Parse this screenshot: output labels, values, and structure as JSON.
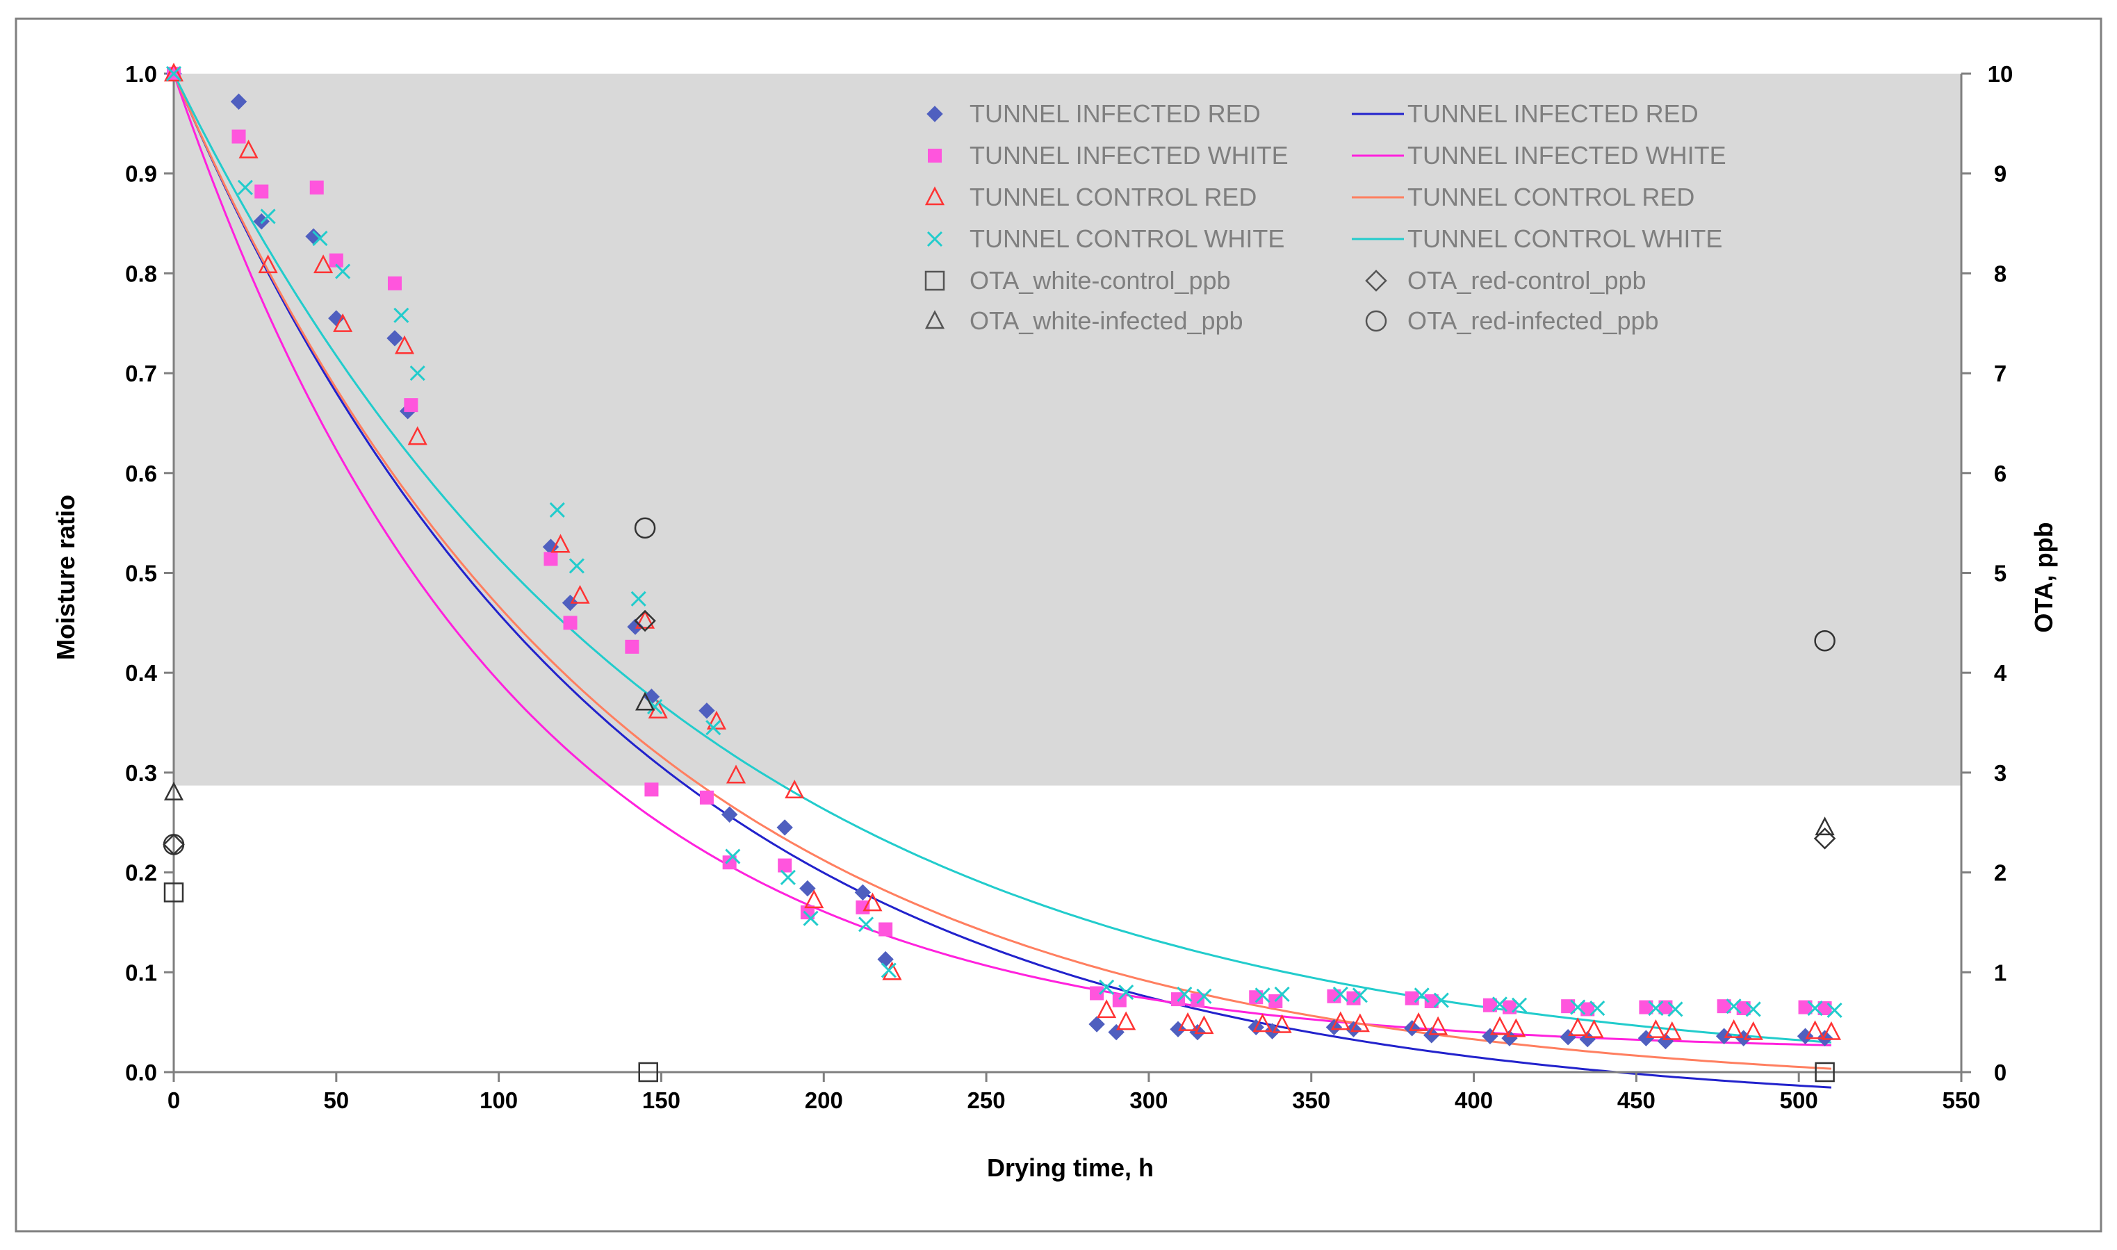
{
  "chart_data": {
    "type": "scatter",
    "title": "",
    "xlabel": "Drying time, h",
    "ylabel": "Moisture ratio",
    "y2label": "OTA, ppb",
    "xlim": [
      0,
      550
    ],
    "ylim": [
      0,
      1.0
    ],
    "y2lim": [
      0,
      10
    ],
    "x_ticks": [
      "0",
      "50",
      "100",
      "150",
      "200",
      "250",
      "300",
      "350",
      "400",
      "450",
      "500",
      "550"
    ],
    "y_ticks": [
      "0.0",
      "0.1",
      "0.2",
      "0.3",
      "0.4",
      "0.5",
      "0.6",
      "0.7",
      "0.8",
      "0.9",
      "1.0"
    ],
    "y2_ticks": [
      "0",
      "1",
      "2",
      "3",
      "4",
      "5",
      "6",
      "7",
      "8",
      "9",
      "10"
    ],
    "shaded_band": {
      "y_from": 0.287,
      "y_to": 1.0,
      "color": "#d9d9d9"
    },
    "grid": false,
    "legend_position": "top-right",
    "series": [
      {
        "name": "TUNNEL INFECTED RED",
        "marker": "diamond-filled",
        "color": "#4f5fbf",
        "axis": "left",
        "x": [
          0,
          20,
          27,
          43,
          50,
          68,
          72,
          116,
          122,
          142,
          147,
          164,
          171,
          188,
          195,
          212,
          219,
          284,
          290,
          309,
          315,
          333,
          338,
          357,
          363,
          381,
          387,
          405,
          411,
          429,
          435,
          453,
          459,
          477,
          483,
          502,
          508
        ],
        "y": [
          1.0,
          0.972,
          0.852,
          0.837,
          0.755,
          0.735,
          0.662,
          0.526,
          0.47,
          0.446,
          0.376,
          0.362,
          0.258,
          0.245,
          0.184,
          0.18,
          0.113,
          0.048,
          0.04,
          0.043,
          0.04,
          0.045,
          0.041,
          0.045,
          0.043,
          0.044,
          0.037,
          0.036,
          0.034,
          0.035,
          0.033,
          0.034,
          0.031,
          0.036,
          0.034,
          0.036,
          0.034
        ]
      },
      {
        "name": "TUNNEL INFECTED WHITE",
        "marker": "square-filled",
        "color": "#ff55dd",
        "axis": "left",
        "x": [
          0,
          20,
          27,
          44,
          50,
          68,
          73,
          116,
          122,
          141,
          147,
          164,
          171,
          188,
          195,
          212,
          219,
          284,
          291,
          309,
          315,
          333,
          339,
          357,
          363,
          381,
          387,
          405,
          411,
          429,
          435,
          453,
          459,
          477,
          483,
          502,
          508
        ],
        "y": [
          1.0,
          0.937,
          0.882,
          0.886,
          0.813,
          0.79,
          0.668,
          0.514,
          0.45,
          0.426,
          0.283,
          0.275,
          0.21,
          0.207,
          0.16,
          0.165,
          0.143,
          0.079,
          0.072,
          0.073,
          0.072,
          0.075,
          0.071,
          0.076,
          0.074,
          0.074,
          0.071,
          0.067,
          0.065,
          0.066,
          0.063,
          0.065,
          0.065,
          0.066,
          0.064,
          0.065,
          0.064
        ]
      },
      {
        "name": "TUNNEL CONTROL RED",
        "marker": "triangle-open",
        "color": "#ff3333",
        "axis": "left",
        "x": [
          0,
          23,
          29,
          46,
          52,
          71,
          75,
          119,
          125,
          145,
          149,
          167,
          173,
          191,
          197,
          215,
          221,
          287,
          293,
          312,
          317,
          335,
          341,
          359,
          365,
          383,
          389,
          408,
          413,
          432,
          437,
          456,
          461,
          480,
          486,
          505,
          510
        ],
        "y": [
          1.0,
          0.923,
          0.808,
          0.808,
          0.749,
          0.727,
          0.636,
          0.528,
          0.477,
          0.452,
          0.362,
          0.351,
          0.297,
          0.282,
          0.172,
          0.169,
          0.1,
          0.062,
          0.05,
          0.049,
          0.046,
          0.048,
          0.047,
          0.05,
          0.048,
          0.049,
          0.045,
          0.045,
          0.043,
          0.044,
          0.042,
          0.042,
          0.04,
          0.042,
          0.04,
          0.041,
          0.04
        ]
      },
      {
        "name": "TUNNEL CONTROL WHITE",
        "marker": "x",
        "color": "#22cccc",
        "axis": "left",
        "x": [
          0,
          22,
          29,
          45,
          52,
          70,
          75,
          118,
          124,
          143,
          148,
          166,
          172,
          189,
          196,
          213,
          220,
          287,
          293,
          311,
          317,
          335,
          341,
          359,
          365,
          384,
          390,
          408,
          414,
          432,
          438,
          456,
          462,
          480,
          486,
          505,
          511
        ],
        "y": [
          1.0,
          0.886,
          0.857,
          0.835,
          0.802,
          0.758,
          0.7,
          0.563,
          0.507,
          0.474,
          0.366,
          0.345,
          0.216,
          0.195,
          0.154,
          0.148,
          0.102,
          0.085,
          0.08,
          0.078,
          0.076,
          0.077,
          0.078,
          0.078,
          0.077,
          0.077,
          0.072,
          0.068,
          0.067,
          0.065,
          0.064,
          0.064,
          0.063,
          0.066,
          0.063,
          0.064,
          0.062
        ]
      },
      {
        "name": "OTA_white-control_ppb",
        "marker": "square-open",
        "color": "#333333",
        "axis": "right",
        "x": [
          0,
          146,
          508
        ],
        "y": [
          1.8,
          0.0,
          0.0
        ]
      },
      {
        "name": "OTA_white-infected_ppb",
        "marker": "triangle-open",
        "color": "#333333",
        "axis": "right",
        "x": [
          0,
          145,
          508
        ],
        "y": [
          2.8,
          3.7,
          2.45
        ]
      },
      {
        "name": "OTA_red-control_ppb",
        "marker": "diamond-open",
        "color": "#333333",
        "axis": "right",
        "x": [
          0,
          145,
          508
        ],
        "y": [
          2.28,
          4.52,
          2.34
        ]
      },
      {
        "name": "OTA_red-infected_ppb",
        "marker": "circle-open",
        "color": "#333333",
        "axis": "right",
        "x": [
          0,
          145,
          508
        ],
        "y": [
          2.28,
          5.45,
          4.32
        ]
      }
    ],
    "fits": [
      {
        "name": "TUNNEL INFECTED RED",
        "color": "#2222cc",
        "a": 1.04,
        "k": 0.00734,
        "c": -0.04
      },
      {
        "name": "TUNNEL INFECTED WHITE",
        "color": "#ff22dd",
        "a": 0.98,
        "k": 0.0097,
        "c": 0.02
      },
      {
        "name": "TUNNEL CONTROL RED",
        "color": "#ff7f60",
        "a": 1.02,
        "k": 0.0074,
        "c": -0.02
      },
      {
        "name": "TUNNEL CONTROL WHITE",
        "color": "#22cccc",
        "a": 1.005,
        "k": 0.0066,
        "c": -0.005
      }
    ]
  }
}
